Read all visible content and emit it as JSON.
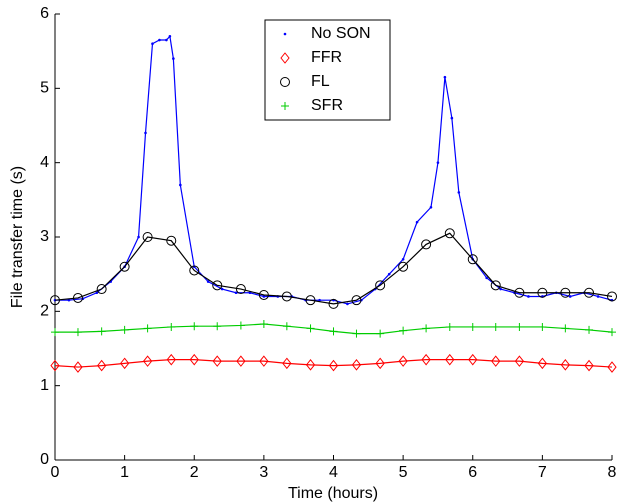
{
  "chart_data": {
    "type": "line",
    "xlabel": "Time (hours)",
    "ylabel": "File transfer time (s)",
    "xlim": [
      0,
      8
    ],
    "xticks": [
      0,
      1,
      2,
      3,
      4,
      5,
      6,
      7,
      8
    ],
    "ylim": [
      0,
      6
    ],
    "yticks": [
      0,
      1,
      2,
      3,
      4,
      5,
      6
    ],
    "grid": false,
    "legend": "upper center",
    "series": [
      {
        "name": "No SON",
        "color": "#0000ff",
        "marker": "dot",
        "x": [
          0,
          0.2,
          0.4,
          0.6,
          0.8,
          1.0,
          1.2,
          1.3,
          1.4,
          1.5,
          1.6,
          1.65,
          1.7,
          1.8,
          2.0,
          2.2,
          2.4,
          2.6,
          2.8,
          3.0,
          3.2,
          3.4,
          3.6,
          3.8,
          4.0,
          4.2,
          4.4,
          4.6,
          4.8,
          5.0,
          5.2,
          5.4,
          5.5,
          5.6,
          5.7,
          5.8,
          6.0,
          6.2,
          6.4,
          6.6,
          6.8,
          7.0,
          7.2,
          7.4,
          7.6,
          7.8,
          8.0
        ],
        "values": [
          2.15,
          2.15,
          2.17,
          2.25,
          2.4,
          2.6,
          3.0,
          4.4,
          5.6,
          5.65,
          5.65,
          5.7,
          5.4,
          3.7,
          2.6,
          2.4,
          2.3,
          2.25,
          2.25,
          2.2,
          2.2,
          2.2,
          2.15,
          2.15,
          2.15,
          2.1,
          2.15,
          2.3,
          2.5,
          2.7,
          3.2,
          3.4,
          4.0,
          5.15,
          4.6,
          3.6,
          2.7,
          2.45,
          2.3,
          2.25,
          2.2,
          2.2,
          2.25,
          2.2,
          2.25,
          2.2,
          2.15
        ]
      },
      {
        "name": "FFR",
        "color": "#ff0000",
        "marker": "diamond",
        "x": [
          0,
          0.33,
          0.67,
          1,
          1.33,
          1.67,
          2,
          2.33,
          2.67,
          3,
          3.33,
          3.67,
          4,
          4.33,
          4.67,
          5,
          5.33,
          5.67,
          6,
          6.33,
          6.67,
          7,
          7.33,
          7.67,
          8
        ],
        "values": [
          1.27,
          1.25,
          1.27,
          1.3,
          1.33,
          1.35,
          1.35,
          1.33,
          1.33,
          1.33,
          1.3,
          1.28,
          1.27,
          1.28,
          1.3,
          1.33,
          1.35,
          1.35,
          1.35,
          1.33,
          1.33,
          1.3,
          1.28,
          1.27,
          1.25
        ]
      },
      {
        "name": "FL",
        "color": "#000000",
        "marker": "circle",
        "x": [
          0,
          0.33,
          0.67,
          1,
          1.33,
          1.67,
          2,
          2.33,
          2.67,
          3,
          3.33,
          3.67,
          4,
          4.33,
          4.67,
          5,
          5.33,
          5.67,
          6,
          6.33,
          6.67,
          7,
          7.33,
          7.67,
          8
        ],
        "values": [
          2.15,
          2.18,
          2.3,
          2.6,
          3.0,
          2.95,
          2.55,
          2.35,
          2.3,
          2.22,
          2.2,
          2.15,
          2.1,
          2.15,
          2.35,
          2.6,
          2.9,
          3.05,
          2.7,
          2.35,
          2.25,
          2.25,
          2.25,
          2.25,
          2.2
        ]
      },
      {
        "name": "SFR",
        "color": "#00cc00",
        "marker": "plus",
        "x": [
          0,
          0.33,
          0.67,
          1,
          1.33,
          1.67,
          2,
          2.33,
          2.67,
          3,
          3.33,
          3.67,
          4,
          4.33,
          4.67,
          5,
          5.33,
          5.67,
          6,
          6.33,
          6.67,
          7,
          7.33,
          7.67,
          8
        ],
        "values": [
          1.72,
          1.72,
          1.73,
          1.75,
          1.77,
          1.79,
          1.8,
          1.8,
          1.81,
          1.83,
          1.8,
          1.77,
          1.73,
          1.7,
          1.7,
          1.74,
          1.77,
          1.79,
          1.79,
          1.79,
          1.79,
          1.79,
          1.77,
          1.75,
          1.72
        ]
      }
    ]
  }
}
